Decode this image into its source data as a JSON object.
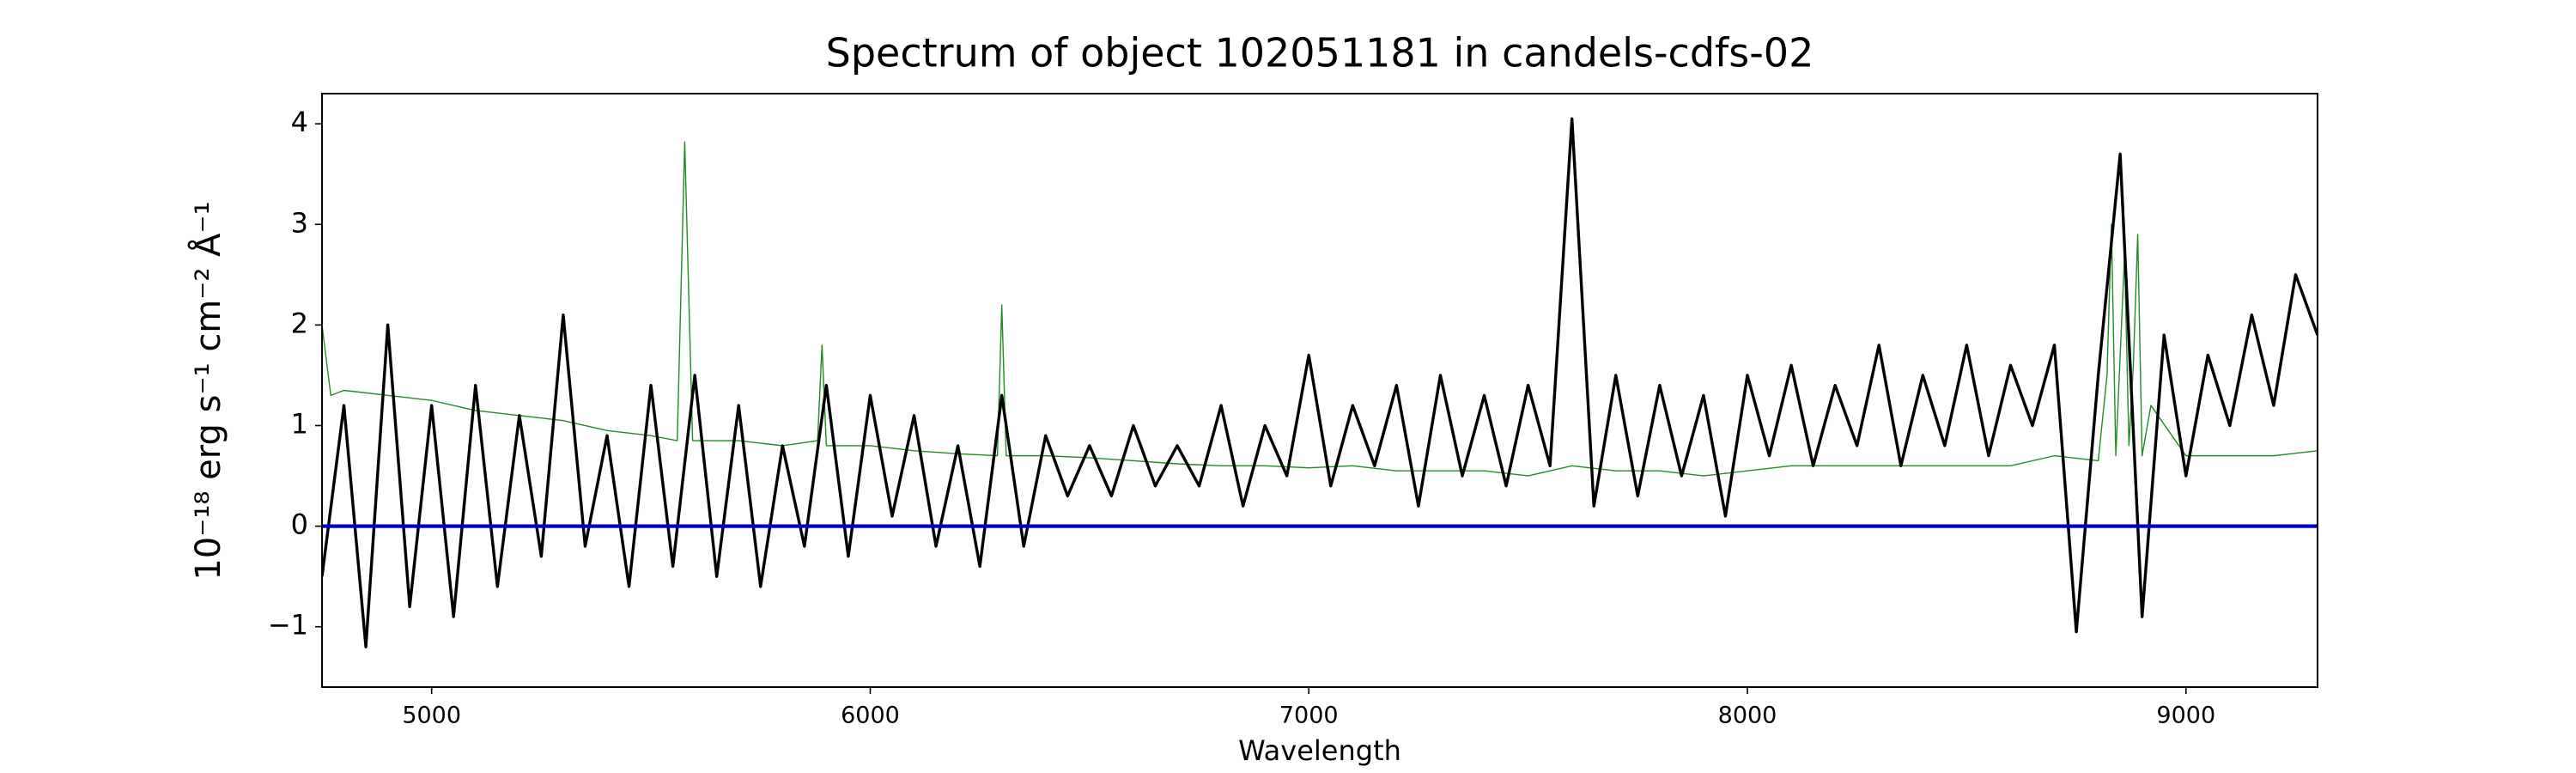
{
  "chart_data": {
    "type": "line",
    "title": "Spectrum of object 102051181 in candels-cdfs-02",
    "x_label": "Wavelength",
    "y_label": "10⁻¹⁸ erg s⁻¹ cm⁻² Å⁻¹",
    "xlim": [
      4750,
      9300
    ],
    "ylim": [
      -1.6,
      4.3
    ],
    "xticks": [
      5000,
      6000,
      7000,
      8000,
      9000
    ],
    "yticks": [
      {
        "value": -1,
        "label": "−1"
      },
      0,
      1,
      2,
      3,
      4
    ],
    "grid": false,
    "series": [
      {
        "color": "#228b22",
        "x": [
          4750,
          4770,
          4800,
          4900,
          5000,
          5100,
          5200,
          5300,
          5400,
          5500,
          5560,
          5577,
          5595,
          5700,
          5800,
          5880,
          5890,
          5900,
          6000,
          6100,
          6200,
          6290,
          6300,
          6310,
          6400,
          6500,
          6600,
          6700,
          6800,
          6900,
          7000,
          7100,
          7200,
          7300,
          7400,
          7500,
          7600,
          7700,
          7800,
          7900,
          8000,
          8100,
          8200,
          8300,
          8400,
          8500,
          8600,
          8700,
          8800,
          8820,
          8830,
          8840,
          8860,
          8870,
          8880,
          8890,
          8900,
          8920,
          9000,
          9100,
          9200,
          9300
        ],
        "values": [
          2.0,
          1.3,
          1.35,
          1.3,
          1.25,
          1.15,
          1.1,
          1.05,
          0.95,
          0.9,
          0.85,
          3.82,
          0.85,
          0.85,
          0.8,
          0.85,
          1.8,
          0.8,
          0.8,
          0.75,
          0.72,
          0.7,
          2.2,
          0.7,
          0.7,
          0.68,
          0.65,
          0.62,
          0.6,
          0.6,
          0.58,
          0.6,
          0.55,
          0.55,
          0.55,
          0.5,
          0.6,
          0.55,
          0.55,
          0.5,
          0.55,
          0.6,
          0.6,
          0.6,
          0.6,
          0.6,
          0.6,
          0.7,
          0.65,
          1.5,
          3.0,
          0.7,
          2.7,
          0.8,
          1.6,
          2.9,
          0.7,
          1.2,
          0.7,
          0.7,
          0.7,
          0.75
        ]
      },
      {
        "color": "#000000",
        "x": [
          4750,
          4800,
          4850,
          4900,
          4950,
          5000,
          5050,
          5100,
          5150,
          5200,
          5250,
          5300,
          5350,
          5400,
          5450,
          5500,
          5550,
          5600,
          5650,
          5700,
          5750,
          5800,
          5850,
          5900,
          5950,
          6000,
          6050,
          6100,
          6150,
          6200,
          6250,
          6300,
          6350,
          6400,
          6450,
          6500,
          6550,
          6600,
          6650,
          6700,
          6750,
          6800,
          6850,
          6900,
          6950,
          7000,
          7050,
          7100,
          7150,
          7200,
          7250,
          7300,
          7350,
          7400,
          7450,
          7500,
          7550,
          7600,
          7650,
          7700,
          7750,
          7800,
          7850,
          7900,
          7950,
          8000,
          8050,
          8100,
          8150,
          8200,
          8250,
          8300,
          8350,
          8400,
          8450,
          8500,
          8550,
          8600,
          8650,
          8700,
          8750,
          8800,
          8850,
          8900,
          8950,
          9000,
          9050,
          9100,
          9150,
          9200,
          9250,
          9300
        ],
        "values": [
          -0.5,
          1.2,
          -1.2,
          2.0,
          -0.8,
          1.2,
          -0.9,
          1.4,
          -0.6,
          1.1,
          -0.3,
          2.1,
          -0.2,
          0.9,
          -0.6,
          1.4,
          -0.4,
          1.5,
          -0.5,
          1.2,
          -0.6,
          0.8,
          -0.2,
          1.4,
          -0.3,
          1.3,
          0.1,
          1.1,
          -0.2,
          0.8,
          -0.4,
          1.3,
          -0.2,
          0.9,
          0.3,
          0.8,
          0.3,
          1.0,
          0.4,
          0.8,
          0.4,
          1.2,
          0.2,
          1.0,
          0.5,
          1.7,
          0.4,
          1.2,
          0.6,
          1.4,
          0.2,
          1.5,
          0.5,
          1.3,
          0.4,
          1.4,
          0.6,
          4.05,
          0.2,
          1.5,
          0.3,
          1.4,
          0.5,
          1.3,
          0.1,
          1.5,
          0.7,
          1.6,
          0.6,
          1.4,
          0.8,
          1.8,
          0.6,
          1.5,
          0.8,
          1.8,
          0.7,
          1.6,
          1.0,
          1.8,
          -1.05,
          1.5,
          3.7,
          -0.9,
          1.9,
          0.5,
          1.7,
          1.0,
          2.1,
          1.2,
          2.5,
          1.9
        ]
      },
      {
        "color": "#0000cd",
        "x": [
          4750,
          9300
        ],
        "values": [
          0,
          0
        ]
      }
    ]
  }
}
